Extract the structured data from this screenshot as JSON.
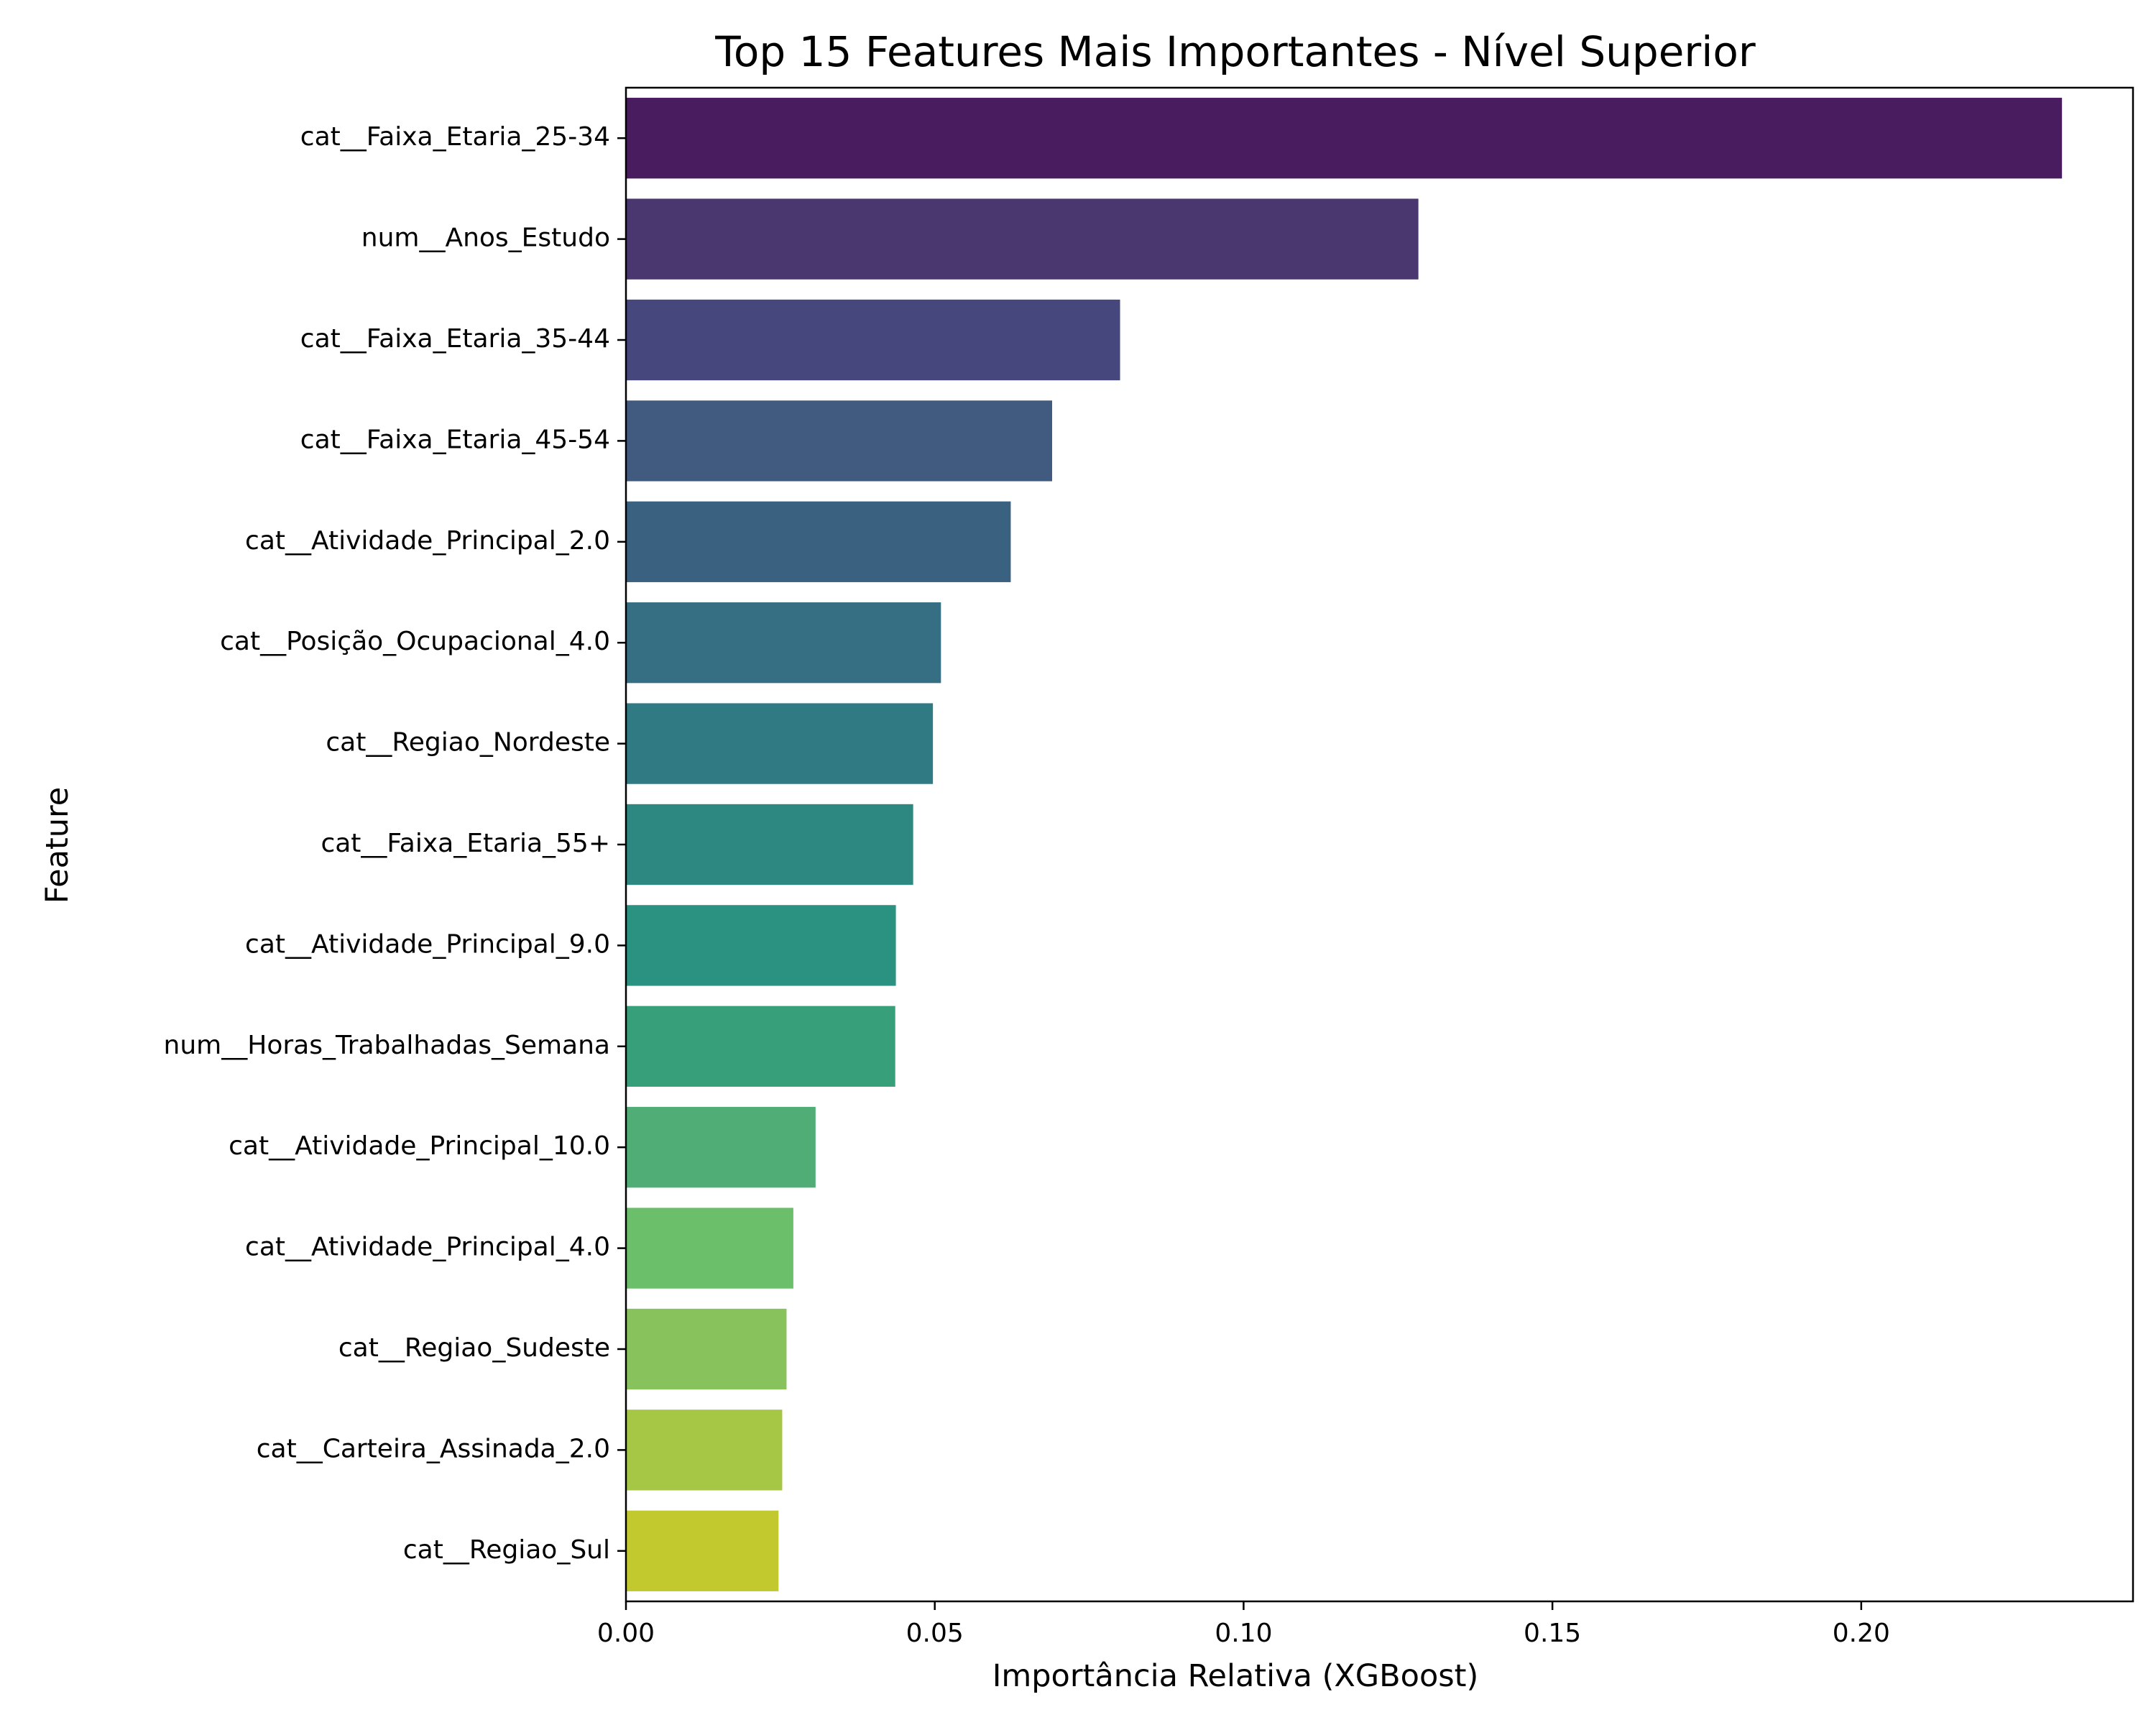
{
  "chart_data": {
    "type": "bar",
    "orientation": "horizontal",
    "title": "Top 15 Features Mais Importantes - Nível Superior",
    "xlabel": "Importância Relativa (XGBoost)",
    "ylabel": "Feature",
    "xlim": [
      0,
      0.244
    ],
    "xticks": [
      "0.00",
      "0.05",
      "0.10",
      "0.15",
      "0.20"
    ],
    "xtick_values": [
      0,
      0.05,
      0.1,
      0.15,
      0.2
    ],
    "grid": false,
    "colormap": "viridis",
    "categories": [
      "cat__Faixa_Etaria_25-34",
      "num__Anos_Estudo",
      "cat__Faixa_Etaria_35-44",
      "cat__Faixa_Etaria_45-54",
      "cat__Atividade_Principal_2.0",
      "cat__Posição_Ocupacional_4.0",
      "cat__Regiao_Nordeste",
      "cat__Faixa_Etaria_55+",
      "cat__Atividade_Principal_9.0",
      "num__Horas_Trabalhadas_Semana",
      "cat__Atividade_Principal_10.0",
      "cat__Atividade_Principal_4.0",
      "cat__Regiao_Sudeste",
      "cat__Carteira_Assinada_2.0",
      "cat__Regiao_Sul"
    ],
    "values": [
      0.2325,
      0.1283,
      0.08,
      0.069,
      0.0623,
      0.051,
      0.0497,
      0.0465,
      0.0437,
      0.0436,
      0.0307,
      0.0271,
      0.026,
      0.0253,
      0.0247
    ],
    "colors": [
      "#481c5e",
      "#4a376f",
      "#46477d",
      "#405a80",
      "#3b6181",
      "#366f83",
      "#307a84",
      "#2c8881",
      "#2b9180",
      "#37a07b",
      "#50ad76",
      "#6cbf6a",
      "#88c25c",
      "#a5c745",
      "#c2c92f"
    ]
  }
}
